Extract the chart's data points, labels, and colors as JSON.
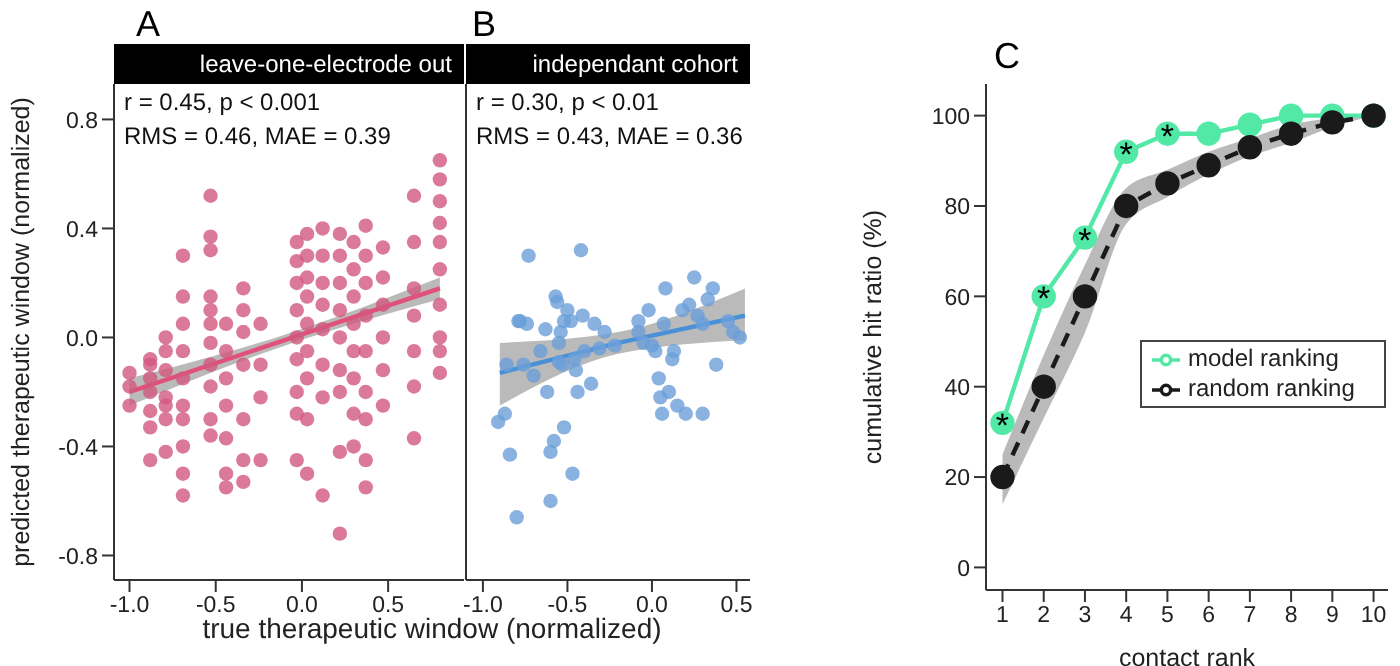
{
  "chart_data": [
    {
      "type": "scatter",
      "title": "A",
      "subtitle": "leave-one-electrode out",
      "xlabel": "true therapeutic window (normalized)",
      "ylabel": "predicted therapeutic window (normalized)",
      "xlim": [
        -1.09,
        0.94
      ],
      "xticks": [
        {
          "value": -1,
          "label": "-1.0"
        },
        {
          "value": -0.5,
          "label": "-0.5"
        },
        {
          "value": 0,
          "label": "0.0"
        },
        {
          "value": 0.5,
          "label": "0.5"
        }
      ],
      "ylim": [
        -0.89,
        0.93
      ],
      "yticks": [
        {
          "value": -0.8,
          "label": "-0.8"
        },
        {
          "value": -0.4,
          "label": "-0.4"
        },
        {
          "value": 0,
          "label": "0.0"
        },
        {
          "value": 0.4,
          "label": "0.4"
        },
        {
          "value": 0.8,
          "label": "0.8"
        }
      ],
      "annotations": [
        "r = 0.45, p < 0.001",
        "RMS = 0.46, MAE = 0.39"
      ],
      "series": [
        {
          "color": "#d2577f",
          "x": [
            -1.0,
            -1.0,
            -1.0,
            -0.88,
            -0.88,
            -0.88,
            -0.88,
            -0.88,
            -0.88,
            -0.88,
            -0.79,
            -0.79,
            -0.79,
            -0.79,
            -0.79,
            -0.79,
            -0.79,
            -0.69,
            -0.69,
            -0.69,
            -0.69,
            -0.69,
            -0.69,
            -0.69,
            -0.69,
            -0.69,
            -0.69,
            -0.53,
            -0.53,
            -0.53,
            -0.53,
            -0.53,
            -0.53,
            -0.53,
            -0.53,
            -0.53,
            -0.53,
            -0.53,
            -0.44,
            -0.44,
            -0.44,
            -0.44,
            -0.44,
            -0.44,
            -0.44,
            -0.34,
            -0.34,
            -0.34,
            -0.34,
            -0.34,
            -0.34,
            -0.34,
            -0.24,
            -0.24,
            -0.24,
            -0.24,
            -0.03,
            -0.03,
            -0.03,
            -0.03,
            -0.03,
            -0.03,
            -0.03,
            -0.03,
            -0.03,
            0.03,
            0.03,
            0.03,
            0.03,
            0.03,
            0.03,
            0.03,
            0.03,
            0.03,
            0.12,
            0.12,
            0.12,
            0.12,
            0.12,
            0.12,
            0.12,
            0.12,
            0.22,
            0.22,
            0.22,
            0.22,
            0.22,
            0.22,
            0.22,
            0.22,
            0.22,
            0.3,
            0.3,
            0.3,
            0.3,
            0.3,
            0.3,
            0.3,
            0.3,
            0.37,
            0.37,
            0.37,
            0.37,
            0.37,
            0.37,
            0.37,
            0.37,
            0.37,
            0.47,
            0.47,
            0.47,
            0.47,
            0.47,
            0.47,
            0.65,
            0.65,
            0.65,
            0.65,
            0.65,
            0.65,
            0.65,
            0.8,
            0.8,
            0.8,
            0.8,
            0.8,
            0.8,
            0.8,
            0.8,
            0.8,
            0.8
          ],
          "values": [
            -0.13,
            -0.18,
            -0.25,
            -0.08,
            -0.1,
            -0.15,
            -0.2,
            -0.27,
            -0.33,
            -0.45,
            0.0,
            -0.05,
            -0.12,
            -0.22,
            -0.25,
            -0.3,
            -0.42,
            0.3,
            0.15,
            0.05,
            -0.05,
            -0.15,
            -0.25,
            -0.3,
            -0.4,
            -0.5,
            -0.58,
            0.52,
            0.37,
            0.32,
            0.15,
            0.1,
            0.05,
            -0.02,
            -0.1,
            -0.18,
            -0.3,
            -0.36,
            0.05,
            -0.05,
            -0.15,
            -0.25,
            -0.37,
            -0.5,
            -0.55,
            0.18,
            0.1,
            0.02,
            -0.1,
            -0.3,
            -0.45,
            -0.53,
            0.05,
            -0.1,
            -0.22,
            -0.45,
            0.35,
            0.28,
            0.2,
            0.1,
            0.0,
            -0.08,
            -0.2,
            -0.28,
            -0.45,
            0.38,
            0.3,
            0.22,
            0.15,
            0.05,
            -0.05,
            -0.15,
            -0.3,
            -0.5,
            0.4,
            0.3,
            0.2,
            0.12,
            0.03,
            -0.1,
            -0.22,
            -0.58,
            0.38,
            0.3,
            0.2,
            0.1,
            0.0,
            -0.12,
            -0.2,
            -0.42,
            -0.72,
            0.35,
            0.25,
            0.15,
            0.05,
            -0.05,
            -0.15,
            -0.28,
            -0.4,
            0.41,
            0.3,
            0.2,
            0.08,
            -0.05,
            -0.2,
            -0.3,
            -0.45,
            -0.55,
            0.33,
            0.22,
            0.12,
            0.0,
            -0.12,
            -0.25,
            0.52,
            0.35,
            0.18,
            0.08,
            -0.05,
            -0.18,
            -0.37,
            0.65,
            0.58,
            0.5,
            0.42,
            0.35,
            0.25,
            0.12,
            0.0,
            -0.05,
            -0.13
          ]
        },
        {
          "type": "line",
          "color": "#e0507a",
          "x": [
            -1.0,
            -0.1,
            0.8
          ],
          "values": [
            -0.2,
            -0.01,
            0.18
          ],
          "lower": [
            -0.25,
            -0.03,
            0.14
          ],
          "upper": [
            -0.15,
            0.01,
            0.22
          ]
        }
      ]
    },
    {
      "type": "scatter",
      "title": "B",
      "subtitle": "independant cohort",
      "tick_labels": "x",
      "xlim": [
        -1.1,
        0.58
      ],
      "xticks": [
        {
          "value": -1,
          "label": "-1.0"
        },
        {
          "value": -0.5,
          "label": "-0.5"
        },
        {
          "value": 0,
          "label": "0.0"
        },
        {
          "value": 0.5,
          "label": "0.5"
        }
      ],
      "ylim": [
        -0.89,
        0.93
      ],
      "annotations": [
        "r = 0.30, p < 0.01",
        "RMS = 0.43, MAE = 0.36"
      ],
      "series": [
        {
          "color": "#6c9fd9",
          "x": [
            -0.91,
            -0.87,
            -0.84,
            -0.86,
            -0.8,
            -0.79,
            -0.78,
            -0.74,
            -0.73,
            -0.76,
            -0.7,
            -0.66,
            -0.63,
            -0.62,
            -0.6,
            -0.6,
            -0.58,
            -0.57,
            -0.56,
            -0.55,
            -0.55,
            -0.54,
            -0.53,
            -0.52,
            -0.52,
            -0.5,
            -0.48,
            -0.47,
            -0.46,
            -0.45,
            -0.44,
            -0.42,
            -0.41,
            -0.4,
            -0.36,
            -0.34,
            -0.31,
            -0.28,
            -0.22,
            -0.08,
            -0.08,
            -0.05,
            -0.02,
            0.0,
            0.02,
            0.04,
            0.05,
            0.06,
            0.07,
            0.08,
            0.1,
            0.12,
            0.13,
            0.15,
            0.18,
            0.2,
            0.22,
            0.25,
            0.27,
            0.3,
            0.3,
            0.33,
            0.36,
            0.38,
            0.45,
            0.48,
            0.52
          ],
          "values": [
            -0.31,
            -0.28,
            -0.43,
            -0.1,
            -0.66,
            0.06,
            0.06,
            0.05,
            0.3,
            -0.1,
            -0.14,
            -0.05,
            0.03,
            -0.2,
            -0.42,
            -0.6,
            -0.38,
            0.15,
            0.13,
            -0.02,
            -0.09,
            0.02,
            -0.1,
            -0.33,
            0.06,
            0.1,
            0.06,
            -0.5,
            -0.08,
            -0.12,
            -0.2,
            0.32,
            0.08,
            -0.05,
            -0.17,
            0.05,
            -0.04,
            0.02,
            -0.03,
            0.06,
            0.02,
            -0.02,
            0.1,
            -0.03,
            -0.05,
            -0.15,
            -0.22,
            -0.28,
            0.05,
            0.18,
            -0.2,
            -0.08,
            -0.05,
            -0.25,
            0.1,
            -0.28,
            0.12,
            0.22,
            0.08,
            0.05,
            -0.28,
            0.14,
            0.18,
            -0.1,
            0.06,
            0.02,
            0.0
          ]
        },
        {
          "type": "line",
          "color": "#4a90d9",
          "x": [
            -0.9,
            -0.2,
            0.55
          ],
          "values": [
            -0.13,
            -0.02,
            0.08
          ],
          "lower": [
            -0.25,
            -0.06,
            -0.01
          ],
          "upper": [
            -0.02,
            0.02,
            0.18
          ]
        }
      ]
    },
    {
      "type": "line",
      "title": "C",
      "xlabel": "contact rank",
      "ylabel": "cumulative hit ratio (%)",
      "x": [
        1,
        2,
        3,
        4,
        5,
        6,
        7,
        8,
        9,
        10
      ],
      "xlim": [
        0.6,
        10.35
      ],
      "xticks": [
        1,
        2,
        3,
        4,
        5,
        6,
        7,
        8,
        9,
        10
      ],
      "ylim": [
        -5,
        107
      ],
      "yticks": [
        0,
        20,
        40,
        60,
        80,
        100
      ],
      "legend": "right",
      "marker": "circle",
      "annotations": [
        {
          "text": "*",
          "x": 1,
          "y": 32
        },
        {
          "text": "*",
          "x": 2,
          "y": 60
        },
        {
          "text": "*",
          "x": 3,
          "y": 73
        },
        {
          "text": "*",
          "x": 4,
          "y": 92
        },
        {
          "text": "*",
          "x": 5,
          "y": 96
        }
      ],
      "series": [
        {
          "name": "model ranking",
          "color": "#52e8a6",
          "line_style": "solid",
          "values": [
            32,
            60,
            73,
            92,
            96,
            96,
            98,
            100,
            100,
            100
          ]
        },
        {
          "name": "random ranking",
          "color": "#1a1a1a",
          "line_style": "dashed",
          "values": [
            20,
            40,
            60,
            80,
            85,
            89,
            93,
            96,
            98.5,
            100
          ],
          "lower": [
            14,
            33,
            52,
            76,
            82,
            87,
            91,
            94,
            97.5,
            100
          ],
          "upper": [
            25,
            47,
            67,
            84,
            88,
            92,
            95,
            98,
            99.5,
            100
          ]
        }
      ]
    }
  ]
}
